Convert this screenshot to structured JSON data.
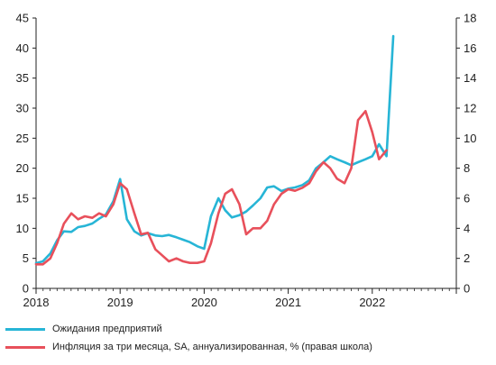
{
  "chart_data": {
    "type": "line",
    "title": "",
    "xlabel": "",
    "ylabel": "",
    "xlim": [
      2018.0,
      2023.0
    ],
    "xticks": [
      2018,
      2019,
      2020,
      2021,
      2022
    ],
    "ylim_left": [
      0,
      45
    ],
    "yticks_left": [
      0,
      5,
      10,
      15,
      20,
      25,
      30,
      35,
      40,
      45
    ],
    "ylim_right": [
      0,
      18
    ],
    "yticks_right": [
      0,
      2,
      4,
      6,
      8,
      10,
      12,
      14,
      16,
      18
    ],
    "grid": false,
    "legend_position": "bottom",
    "series": [
      {
        "name": "Ожидания предприятий",
        "axis": "left",
        "color": "#27b5d6",
        "points": [
          [
            2018.0,
            4.2
          ],
          [
            2018.08,
            4.5
          ],
          [
            2018.17,
            5.8
          ],
          [
            2018.25,
            8.0
          ],
          [
            2018.33,
            9.5
          ],
          [
            2018.42,
            9.4
          ],
          [
            2018.5,
            10.2
          ],
          [
            2018.58,
            10.4
          ],
          [
            2018.67,
            10.8
          ],
          [
            2018.75,
            11.6
          ],
          [
            2018.83,
            12.3
          ],
          [
            2018.92,
            14.5
          ],
          [
            2019.0,
            18.2
          ],
          [
            2019.08,
            11.5
          ],
          [
            2019.17,
            9.5
          ],
          [
            2019.25,
            8.8
          ],
          [
            2019.33,
            9.2
          ],
          [
            2019.42,
            8.8
          ],
          [
            2019.5,
            8.7
          ],
          [
            2019.58,
            8.9
          ],
          [
            2019.67,
            8.5
          ],
          [
            2019.75,
            8.1
          ],
          [
            2019.83,
            7.7
          ],
          [
            2019.92,
            7.0
          ],
          [
            2020.0,
            6.6
          ],
          [
            2020.08,
            12.0
          ],
          [
            2020.17,
            15.0
          ],
          [
            2020.25,
            13.0
          ],
          [
            2020.33,
            11.8
          ],
          [
            2020.42,
            12.2
          ],
          [
            2020.5,
            12.8
          ],
          [
            2020.58,
            13.8
          ],
          [
            2020.67,
            15.0
          ],
          [
            2020.75,
            16.8
          ],
          [
            2020.83,
            17.0
          ],
          [
            2020.92,
            16.2
          ],
          [
            2021.0,
            16.6
          ],
          [
            2021.08,
            16.8
          ],
          [
            2021.17,
            17.2
          ],
          [
            2021.25,
            18.0
          ],
          [
            2021.33,
            20.0
          ],
          [
            2021.42,
            21.0
          ],
          [
            2021.5,
            22.0
          ],
          [
            2021.58,
            21.5
          ],
          [
            2021.67,
            21.0
          ],
          [
            2021.75,
            20.5
          ],
          [
            2021.83,
            21.0
          ],
          [
            2021.92,
            21.5
          ],
          [
            2022.0,
            22.0
          ],
          [
            2022.08,
            24.0
          ],
          [
            2022.17,
            22.0
          ],
          [
            2022.25,
            42.0
          ]
        ]
      },
      {
        "name": "Инфляция за три месяца, SA, аннуализированная, % (правая школа)",
        "axis": "right",
        "color": "#e8505b",
        "points": [
          [
            2018.0,
            1.6
          ],
          [
            2018.08,
            1.6
          ],
          [
            2018.17,
            2.0
          ],
          [
            2018.25,
            3.0
          ],
          [
            2018.33,
            4.3
          ],
          [
            2018.42,
            5.0
          ],
          [
            2018.5,
            4.6
          ],
          [
            2018.58,
            4.8
          ],
          [
            2018.67,
            4.7
          ],
          [
            2018.75,
            5.0
          ],
          [
            2018.83,
            4.8
          ],
          [
            2018.92,
            5.6
          ],
          [
            2019.0,
            7.0
          ],
          [
            2019.08,
            6.6
          ],
          [
            2019.17,
            5.0
          ],
          [
            2019.25,
            3.6
          ],
          [
            2019.33,
            3.7
          ],
          [
            2019.42,
            2.6
          ],
          [
            2019.5,
            2.2
          ],
          [
            2019.58,
            1.8
          ],
          [
            2019.67,
            2.0
          ],
          [
            2019.75,
            1.8
          ],
          [
            2019.83,
            1.7
          ],
          [
            2019.92,
            1.7
          ],
          [
            2020.0,
            1.8
          ],
          [
            2020.08,
            3.0
          ],
          [
            2020.17,
            5.0
          ],
          [
            2020.25,
            6.3
          ],
          [
            2020.33,
            6.6
          ],
          [
            2020.42,
            5.6
          ],
          [
            2020.5,
            3.6
          ],
          [
            2020.58,
            4.0
          ],
          [
            2020.67,
            4.0
          ],
          [
            2020.75,
            4.5
          ],
          [
            2020.83,
            5.6
          ],
          [
            2020.92,
            6.3
          ],
          [
            2021.0,
            6.6
          ],
          [
            2021.08,
            6.5
          ],
          [
            2021.17,
            6.7
          ],
          [
            2021.25,
            7.0
          ],
          [
            2021.33,
            7.8
          ],
          [
            2021.42,
            8.4
          ],
          [
            2021.5,
            8.0
          ],
          [
            2021.58,
            7.3
          ],
          [
            2021.67,
            7.0
          ],
          [
            2021.75,
            8.0
          ],
          [
            2021.83,
            11.2
          ],
          [
            2021.92,
            11.8
          ],
          [
            2022.0,
            10.4
          ],
          [
            2022.08,
            8.6
          ],
          [
            2022.17,
            9.2
          ]
        ]
      }
    ]
  }
}
